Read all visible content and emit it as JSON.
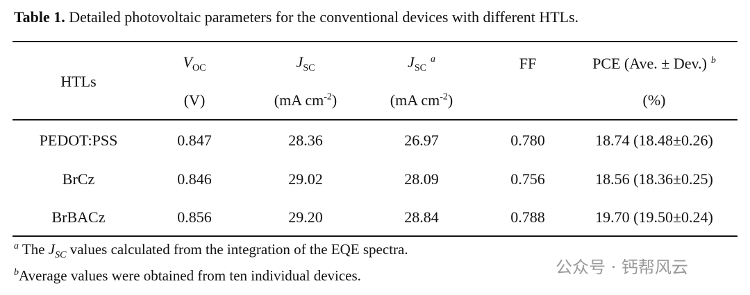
{
  "title": {
    "label": "Table 1.",
    "text": "Detailed photovoltaic parameters for the conventional devices with different HTLs."
  },
  "table": {
    "header": [
      {
        "label": "HTLs"
      },
      {
        "symbol": "V",
        "subscript": "OC",
        "unit": "(V)"
      },
      {
        "symbol": "J",
        "subscript": "SC",
        "unit": "(mA cm",
        "unit_exponent": "-2",
        "unit_end": ")"
      },
      {
        "symbol": "J",
        "subscript": "SC",
        "superscript": "a",
        "unit": "(mA cm",
        "unit_exponent": "-2",
        "unit_end": ")"
      },
      {
        "label": "FF"
      },
      {
        "label": "PCE (Ave. ± Dev.)",
        "superscript": "b",
        "unit": "(%)"
      }
    ],
    "rows": [
      [
        "PEDOT:PSS",
        "0.847",
        "28.36",
        "26.97",
        "0.780",
        "18.74 (18.48±0.26)"
      ],
      [
        "BrCz",
        "0.846",
        "29.02",
        "28.09",
        "0.756",
        "18.56 (18.36±0.25)"
      ],
      [
        "BrBACz",
        "0.856",
        "29.20",
        "28.84",
        "0.788",
        "19.70 (19.50±0.24)"
      ]
    ]
  },
  "footnotes": [
    {
      "mark": "a",
      "before": "The",
      "symbol": "J",
      "subscript": "SC",
      "after": "values calculated from the integration of the EQE spectra."
    },
    {
      "mark": "b",
      "text": "Average values were obtained from ten individual devices."
    }
  ],
  "watermark": "公众号 · 钙帮风云"
}
